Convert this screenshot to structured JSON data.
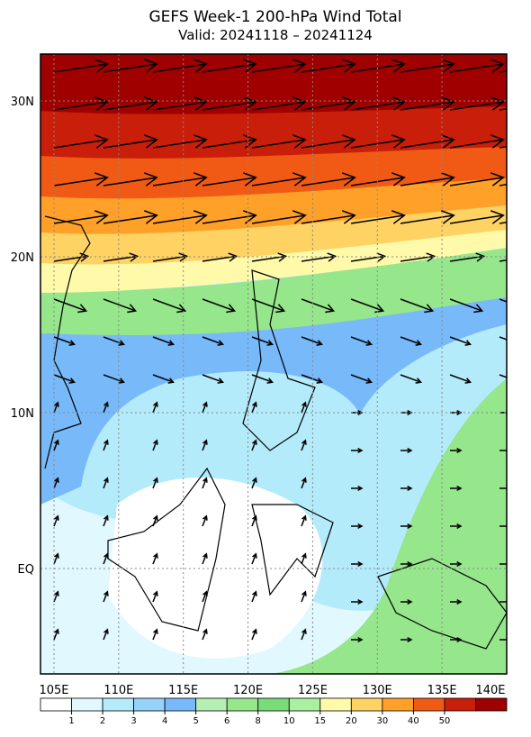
{
  "title": "GEFS Week-1 200-hPa Wind Total",
  "subtitle": "Valid: 20241118 – 20241124",
  "x_axis": {
    "ticks": [
      {
        "value": 105,
        "label": "105E"
      },
      {
        "value": 110,
        "label": "110E"
      },
      {
        "value": 115,
        "label": "115E"
      },
      {
        "value": 120,
        "label": "120E"
      },
      {
        "value": 125,
        "label": "125E"
      },
      {
        "value": 130,
        "label": "130E"
      },
      {
        "value": 135,
        "label": "135E"
      },
      {
        "value": 140,
        "label": "140E"
      }
    ]
  },
  "y_axis": {
    "ticks": [
      {
        "value": 30,
        "label": "30N"
      },
      {
        "value": 20,
        "label": "20N"
      },
      {
        "value": 10,
        "label": "10N"
      },
      {
        "value": 0,
        "label": "EQ"
      }
    ]
  },
  "colorbar": {
    "levels": [
      1,
      2,
      3,
      4,
      5,
      6,
      8,
      10,
      15,
      20,
      30,
      40,
      50
    ],
    "colors": [
      "#ffffff",
      "#e1f8fe",
      "#b4ebfa",
      "#96d2fa",
      "#78b9fa",
      "#b4f0b4",
      "#96e68c",
      "#78dc78",
      "#aaf0a0",
      "#fffaaa",
      "#ffd264",
      "#ffa028",
      "#f05a14",
      "#c81e0a",
      "#a00000"
    ]
  }
}
